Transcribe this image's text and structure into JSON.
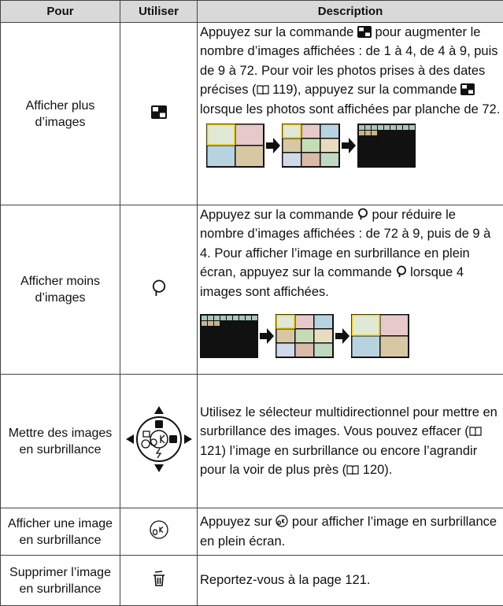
{
  "table": {
    "headers": [
      "Pour",
      "Utiliser",
      "Description"
    ],
    "rows": [
      {
        "pour": "Afficher plus d’images",
        "description": [
          "Appuyez sur la commande",
          "pour augmenter le nombre d’images affichées : de 1 à 4, de 4 à 9, puis de 9 à 72. Pour voir les photos prises à des dates précises (",
          "119), appuyez sur la commande",
          "lorsque les photos sont affichées par planche de 72."
        ]
      },
      {
        "pour": "Afficher moins d’images",
        "description": [
          "Appuyez sur la commande",
          "pour réduire le nombre d’images affichées : de 72 à 9, puis de 9 à 4. Pour afficher l’image en surbrillance en plein écran, appuyez sur la commande",
          "lorsque 4 images sont affichées."
        ]
      },
      {
        "pour": "Mettre des images en surbrillance",
        "description": [
          "Utilisez le sélecteur multidirectionnel pour mettre en surbrillance des images. Vous pouvez effacer (",
          "121) l’image en surbrillance ou encore l’agrandir pour la voir de plus près (",
          "120)."
        ]
      },
      {
        "pour": "Afficher une image en surbrillance",
        "description": [
          "Appuyez sur",
          "pour afficher l’image en surbrillance en plein écran."
        ]
      },
      {
        "pour": "Supprimer l’image en surbrillance",
        "description": [
          "Reportez-vous à la page 121."
        ]
      }
    ]
  }
}
